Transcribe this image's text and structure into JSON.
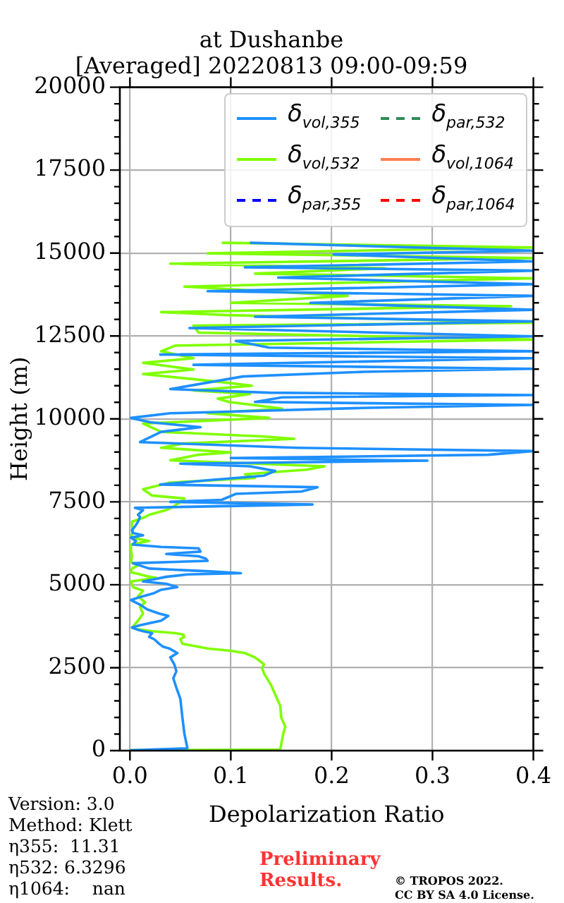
{
  "chart_data": {
    "type": "line",
    "title": "at Dushanbe",
    "subtitle": "[Averaged] 20220813 09:00-09:59",
    "xlabel": "Depolarization Ratio",
    "ylabel": "Height (m)",
    "xlim": [
      -0.01,
      0.4
    ],
    "xticks": [
      {
        "value": 0,
        "label": "0.0"
      },
      0.1,
      0.2,
      0.3,
      0.4
    ],
    "ylim": [
      0,
      20000
    ],
    "yticks": [
      0,
      {
        "value": 500,
        "label": null
      },
      {
        "value": 1000,
        "label": null
      },
      {
        "value": 1500,
        "label": null
      },
      {
        "value": 2000,
        "label": null
      },
      2500,
      {
        "value": 3000,
        "label": null
      },
      {
        "value": 3500,
        "label": null
      },
      {
        "value": 4000,
        "label": null
      },
      {
        "value": 4500,
        "label": null
      },
      5000,
      {
        "value": 5500,
        "label": null
      },
      {
        "value": 6000,
        "label": null
      },
      {
        "value": 6500,
        "label": null
      },
      {
        "value": 7000,
        "label": null
      },
      7500,
      {
        "value": 8000,
        "label": null
      },
      {
        "value": 8500,
        "label": null
      },
      {
        "value": 9000,
        "label": null
      },
      {
        "value": 9500,
        "label": null
      },
      10000,
      {
        "value": 10500,
        "label": null
      },
      {
        "value": 11000,
        "label": null
      },
      {
        "value": 11500,
        "label": null
      },
      {
        "value": 12000,
        "label": null
      },
      12500,
      {
        "value": 13000,
        "label": null
      },
      {
        "value": 13500,
        "label": null
      },
      {
        "value": 14000,
        "label": null
      },
      {
        "value": 14500,
        "label": null
      },
      15000,
      {
        "value": 15500,
        "label": null
      },
      {
        "value": 16000,
        "label": null
      },
      {
        "value": 16500,
        "label": null
      },
      {
        "value": 17000,
        "label": null
      },
      17500,
      {
        "value": 18000,
        "label": null
      },
      {
        "value": 18500,
        "label": null
      },
      {
        "value": 19000,
        "label": null
      },
      {
        "value": 19500,
        "label": null
      },
      20000
    ],
    "grid": true,
    "legend": "top right",
    "series": [
      {
        "name": "δ$_{vol,355}$",
        "color": "#1e90ff",
        "line_style": "solid",
        "x": [
          0.0,
          0.057,
          0.054,
          0.052,
          0.05,
          0.046,
          0.043,
          0.046,
          0.044,
          0.04,
          0.047,
          0.039,
          0.033,
          0.029,
          0.024,
          0.019,
          0.022,
          0.013,
          0.008,
          0.002,
          0.01,
          0.031,
          0.038,
          0.029,
          0.017,
          0.01,
          0.001,
          0.008,
          0.024,
          0.031,
          0.047,
          0.036,
          0.013,
          0.036,
          0.057,
          0.11,
          0.082,
          0.019,
          0.003,
          0.077,
          0.075,
          0.068,
          0.036,
          0.07,
          0.068,
          0.031,
          0.003,
          0.006,
          0.001,
          0.013,
          0.003,
          0.002,
          0.005,
          0.008,
          0.01,
          0.008,
          0.013,
          0.005,
          0.181,
          0.04,
          0.091,
          0.105,
          0.17,
          0.186,
          0.03,
          0.077,
          0.133,
          0.144,
          0.119,
          0.05,
          0.295,
          0.1,
          0.355,
          0.4,
          0.165,
          0.01,
          0.031,
          0.07,
          0.02,
          0.001,
          0.04,
          0.23,
          0.4,
          0.124,
          0.151,
          0.4,
          0.138,
          0.04,
          0.112,
          0.232,
          0.4,
          0.063,
          0.4,
          0.03,
          0.4,
          0.138,
          0.105,
          0.4,
          0.059,
          0.4,
          0.124,
          0.4,
          0.179,
          0.4,
          0.077,
          0.4,
          0.147,
          0.4,
          0.114,
          0.4,
          0.202,
          0.4,
          0.119
        ],
        "values": [
          10,
          70,
          510,
          1000,
          1560,
          1900,
          2180,
          2390,
          2600,
          2810,
          2940,
          3080,
          3130,
          3220,
          3360,
          3430,
          3540,
          3600,
          3640,
          3710,
          3780,
          3920,
          4060,
          4130,
          4260,
          4400,
          4540,
          4610,
          4750,
          4850,
          4930,
          5030,
          5100,
          5240,
          5310,
          5350,
          5400,
          5490,
          5650,
          5720,
          5790,
          5860,
          5930,
          6000,
          6100,
          6140,
          6210,
          6320,
          6420,
          6490,
          6560,
          6650,
          6760,
          6900,
          7040,
          7110,
          7250,
          7320,
          7420,
          7500,
          7560,
          7740,
          7810,
          7940,
          8020,
          8150,
          8290,
          8430,
          8570,
          8650,
          8740,
          8820,
          8920,
          9030,
          9130,
          9300,
          9610,
          9750,
          9900,
          10030,
          10170,
          10330,
          10420,
          10510,
          10650,
          10720,
          10790,
          10900,
          11280,
          11420,
          11510,
          11630,
          11830,
          11940,
          12040,
          12150,
          12350,
          12490,
          12740,
          12940,
          13080,
          13290,
          13500,
          13710,
          13850,
          14060,
          14260,
          14470,
          14570,
          14750,
          14960,
          15070,
          15310
        ]
      },
      {
        "name": "δ$_{vol,532}$",
        "color": "#7fff00",
        "line_style": "solid",
        "x": [
          0.0,
          0.149,
          0.152,
          0.154,
          0.15,
          0.149,
          0.144,
          0.14,
          0.133,
          0.131,
          0.133,
          0.124,
          0.114,
          0.1,
          0.077,
          0.052,
          0.05,
          0.054,
          0.053,
          0.045,
          0.022,
          0.006,
          0.003,
          0.008,
          0.013,
          0.01,
          0.015,
          0.008,
          0.013,
          0.003,
          0.001,
          0.026,
          0.017,
          0.001,
          0.002,
          0.008,
          0.001,
          0.002,
          0.001,
          0.001,
          0.019,
          0.001,
          0.003,
          0.002,
          0.002,
          0.015,
          0.019,
          0.036,
          0.045,
          0.054,
          0.022,
          0.013,
          0.04,
          0.124,
          0.114,
          0.175,
          0.193,
          0.04,
          0.068,
          0.1,
          0.031,
          0.054,
          0.163,
          0.133,
          0.031,
          0.013,
          0.138,
          0.077,
          0.151,
          0.098,
          0.087,
          0.119,
          0.063,
          0.121,
          0.091,
          0.059,
          0.013,
          0.063,
          0.013,
          0.063,
          0.031,
          0.045,
          0.4,
          0.068,
          0.063,
          0.4,
          0.096,
          0.031,
          0.378,
          0.1,
          0.216,
          0.054,
          0.4,
          0.124,
          0.253,
          0.04,
          0.4,
          0.077,
          0.4,
          0.091
        ],
        "values": [
          10,
          30,
          510,
          720,
          1000,
          1350,
          1690,
          1970,
          2320,
          2490,
          2600,
          2810,
          2940,
          3010,
          3080,
          3220,
          3360,
          3430,
          3500,
          3540,
          3600,
          3670,
          3740,
          3920,
          4130,
          4330,
          4470,
          4650,
          4820,
          4930,
          5100,
          5210,
          5260,
          5380,
          5490,
          5580,
          5680,
          5860,
          6040,
          6210,
          6320,
          6420,
          6630,
          6760,
          6900,
          7040,
          7110,
          7250,
          7390,
          7600,
          7690,
          7880,
          8080,
          8220,
          8330,
          8470,
          8570,
          8750,
          8920,
          8990,
          9130,
          9260,
          9400,
          9470,
          9610,
          9860,
          10030,
          10170,
          10310,
          10510,
          10610,
          10750,
          10860,
          11000,
          11110,
          11210,
          11350,
          11490,
          11690,
          11830,
          12040,
          12210,
          12390,
          12600,
          12810,
          12900,
          13130,
          13220,
          13400,
          13500,
          13710,
          13990,
          14240,
          14380,
          14540,
          14680,
          14850,
          14990,
          15170,
          15310
        ]
      },
      {
        "name": "δ$_{par,355}$",
        "color": "#0000ff",
        "line_style": "dashed"
      },
      {
        "name": "δ$_{par,532}$",
        "color": "#2e8b57",
        "line_style": "dashed"
      },
      {
        "name": "δ$_{vol,1064}$",
        "color": "#ff7f50",
        "line_style": "solid"
      },
      {
        "name": "δ$_{par,1064}$",
        "color": "#ff0000",
        "line_style": "dashed"
      }
    ],
    "annotations": [
      "Version: 3.0",
      "Method: Klett",
      "η355:  11.31",
      "η532: 6.3296",
      "η1064:    nan",
      "Preliminary Results.",
      "© TROPOS 2022.",
      "CC BY SA 4.0 License."
    ]
  }
}
